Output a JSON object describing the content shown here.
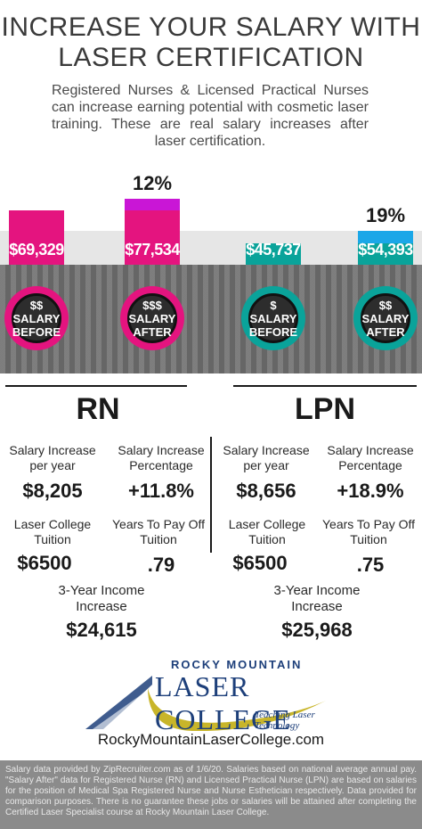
{
  "title": [
    "INCREASE YOUR SALARY WITH",
    "LASER CERTIFICATION"
  ],
  "intro": "Registered Nurses & Licensed Practical Nurses can increase earning potential with cosmetic laser training. These are real salary increases after laser certification.",
  "colors": {
    "rn": "#e4147f",
    "rn_increase": "#c916d6",
    "lpn": "#0aa39a",
    "lpn_increase": "#1aa7e8"
  },
  "chart_data": {
    "type": "bar",
    "categories": [
      "RN Salary Before",
      "RN Salary After",
      "LPN Salary Before",
      "LPN Salary After"
    ],
    "values": [
      69329,
      77534,
      45737,
      54393
    ],
    "value_labels": [
      "$69,329",
      "$77,534",
      "$45,737",
      "$54,393"
    ],
    "increase_labels": [
      "",
      "12%",
      "",
      "19%"
    ]
  },
  "badges": [
    {
      "sym": "$$",
      "line1": "SALARY",
      "line2": "BEFORE"
    },
    {
      "sym": "$$$",
      "line1": "SALARY",
      "line2": "AFTER"
    },
    {
      "sym": "$",
      "line1": "SALARY",
      "line2": "BEFORE"
    },
    {
      "sym": "$$",
      "line1": "SALARY",
      "line2": "AFTER"
    }
  ],
  "rn": {
    "heading": "RN",
    "inc_year_label": "Salary Increase per year",
    "inc_year_value": "$8,205",
    "inc_pct_label": "Salary Increase Percentage",
    "inc_pct_value": "+11.8%",
    "tuition_label": "Laser College Tuition",
    "tuition_value": "$6500",
    "payoff_label": "Years To Pay Off Tuition",
    "payoff_value": ".79",
    "three_year_label": "3-Year Income Increase",
    "three_year_value": "$24,615"
  },
  "lpn": {
    "heading": "LPN",
    "inc_year_label": "Salary Increase per year",
    "inc_year_value": "$8,656",
    "inc_pct_label": "Salary Increase Percentage",
    "inc_pct_value": "+18.9%",
    "tuition_label": "Laser College Tuition",
    "tuition_value": "$6500",
    "payoff_label": "Years To Pay Off Tuition",
    "payoff_value": ".75",
    "three_year_label": "3-Year Income Increase",
    "three_year_value": "$25,968"
  },
  "logo": {
    "top": "ROCKY MOUNTAIN",
    "main": "LASER COLLEGE",
    "tagline": "Teaching Laser Technology"
  },
  "website": "RockyMountainLaserCollege.com",
  "footer": "Salary data provided by ZipRecruiter.com as of 1/6/20. Salaries based on national average annual pay. \"Salary After\" data for Registered Nurse (RN) and Licensed Practical Nurse (LPN) are based on salaries for the position of Medical Spa Registered Nurse and Nurse Esthetician respectively. Data provided for comparison purposes. There is no guarantee these jobs or salaries will be attained after completing the Certified Laser Specialist course at Rocky Mountain Laser College."
}
